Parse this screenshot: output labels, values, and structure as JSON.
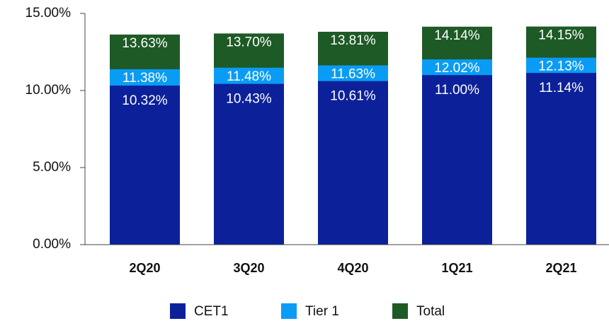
{
  "chart_data": {
    "type": "bar",
    "categories": [
      "2Q20",
      "3Q20",
      "4Q20",
      "1Q21",
      "2Q21"
    ],
    "series": [
      {
        "name": "CET1",
        "color": "#0c2199",
        "values": [
          10.32,
          10.43,
          10.61,
          11.0,
          11.14
        ],
        "value_labels": [
          "10.32%",
          "10.43%",
          "10.61%",
          "11.00%",
          "11.14%"
        ]
      },
      {
        "name": "Tier 1",
        "color": "#0a9cf4",
        "values": [
          11.38,
          11.48,
          11.63,
          12.02,
          12.13
        ],
        "value_labels": [
          "11.38%",
          "11.48%",
          "11.63%",
          "12.02%",
          "12.13%"
        ]
      },
      {
        "name": "Total",
        "color": "#1e5a26",
        "values": [
          13.63,
          13.7,
          13.81,
          14.14,
          14.15
        ],
        "value_labels": [
          "13.63%",
          "13.70%",
          "13.81%",
          "14.14%",
          "14.15%"
        ]
      }
    ],
    "ylim": [
      0,
      15
    ],
    "yticks": [
      {
        "value": 0,
        "label": "0.00%"
      },
      {
        "value": 5,
        "label": "5.00%"
      },
      {
        "value": 10,
        "label": "10.00%"
      },
      {
        "value": 15,
        "label": "15.00%"
      }
    ],
    "overlap": true,
    "grid": false,
    "legend": "bottom"
  }
}
